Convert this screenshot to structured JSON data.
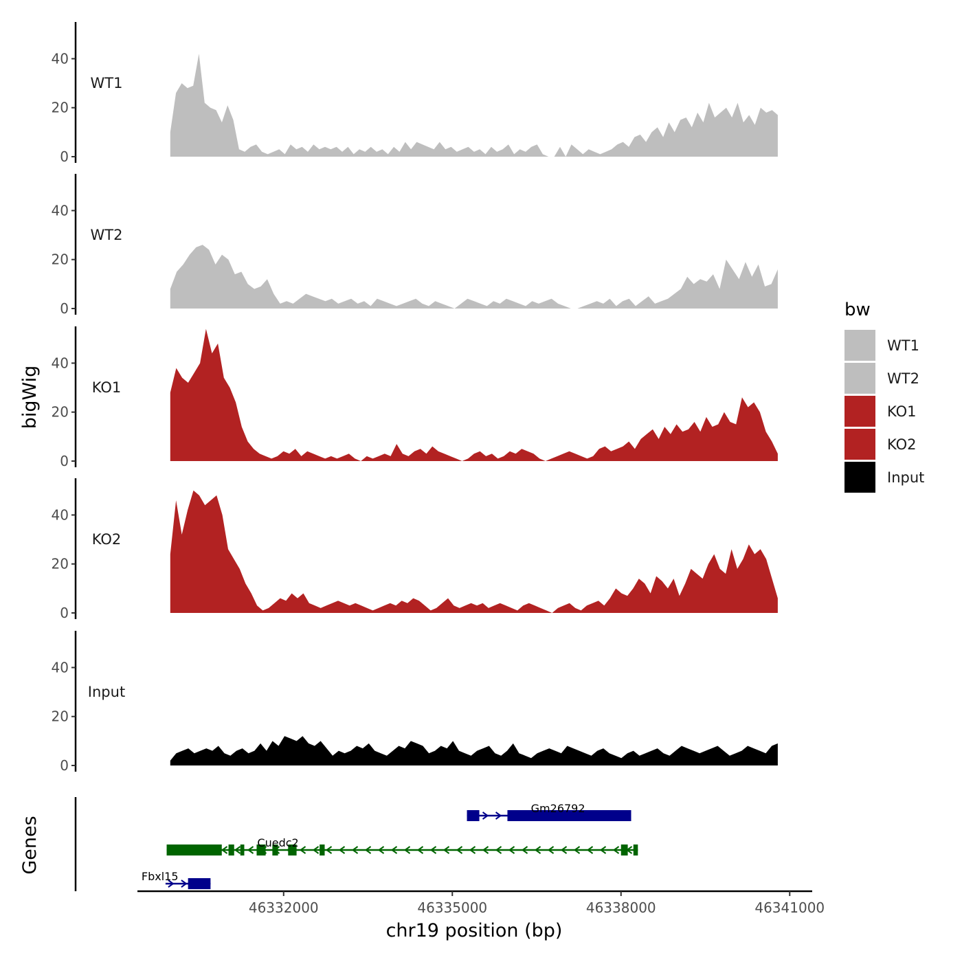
{
  "chart_data": {
    "type": "area",
    "ylabel": "bigWig",
    "xlabel": "chr19 position (bp)",
    "genes_label": "Genes",
    "xlim": [
      46329400,
      46341400
    ],
    "x_ticks": [
      {
        "value": 46332000,
        "label": "46332000"
      },
      {
        "value": 46335000,
        "label": "46335000"
      },
      {
        "value": 46338000,
        "label": "46338000"
      },
      {
        "value": 46341000,
        "label": "46341000"
      }
    ],
    "ylim": [
      0,
      55
    ],
    "y_ticks": [
      {
        "value": 0,
        "label": "0"
      },
      {
        "value": 20,
        "label": "20"
      },
      {
        "value": 40,
        "label": "40"
      }
    ],
    "series_x_range": [
      46329984,
      46340788
    ],
    "tracks": [
      {
        "name": "WT1",
        "label": "WT1",
        "color": "#BEBEBE",
        "values": [
          10,
          26,
          30,
          28,
          29,
          42,
          22,
          20,
          19,
          14,
          21,
          15,
          3,
          2,
          4,
          5,
          2,
          1,
          2,
          3,
          1,
          5,
          3,
          4,
          2,
          5,
          3,
          4,
          3,
          4,
          2,
          4,
          1,
          3,
          2,
          4,
          2,
          3,
          1,
          4,
          2,
          6,
          3,
          6,
          5,
          4,
          3,
          6,
          3,
          4,
          2,
          3,
          4,
          2,
          3,
          1,
          4,
          2,
          3,
          5,
          1,
          3,
          2,
          4,
          5,
          1,
          0,
          0,
          4,
          0,
          5,
          3,
          1,
          3,
          2,
          1,
          2,
          3,
          5,
          6,
          4,
          8,
          9,
          6,
          10,
          12,
          8,
          14,
          10,
          15,
          16,
          12,
          18,
          14,
          22,
          16,
          18,
          20,
          16,
          22,
          14,
          17,
          13,
          20,
          18,
          19,
          17
        ]
      },
      {
        "name": "WT2",
        "label": "WT2",
        "color": "#BEBEBE",
        "values": [
          8,
          15,
          18,
          22,
          25,
          26,
          24,
          18,
          22,
          20,
          14,
          15,
          10,
          8,
          9,
          12,
          6,
          2,
          3,
          2,
          4,
          6,
          5,
          4,
          3,
          4,
          2,
          3,
          4,
          2,
          3,
          1,
          4,
          3,
          2,
          1,
          2,
          3,
          4,
          2,
          1,
          3,
          2,
          1,
          0,
          2,
          4,
          3,
          2,
          1,
          3,
          2,
          4,
          3,
          2,
          1,
          3,
          2,
          3,
          4,
          2,
          1,
          0,
          0,
          1,
          2,
          3,
          2,
          4,
          1,
          3,
          4,
          1,
          3,
          5,
          2,
          3,
          4,
          6,
          8,
          13,
          10,
          12,
          11,
          14,
          8,
          20,
          16,
          12,
          19,
          13,
          18,
          9,
          10,
          16
        ]
      },
      {
        "name": "KO1",
        "label": "KO1",
        "color": "#B22222",
        "values": [
          28,
          38,
          34,
          32,
          36,
          40,
          54,
          44,
          48,
          34,
          30,
          24,
          14,
          8,
          5,
          3,
          2,
          1,
          2,
          4,
          3,
          5,
          2,
          4,
          3,
          2,
          1,
          2,
          1,
          2,
          3,
          1,
          0,
          2,
          1,
          2,
          3,
          2,
          7,
          3,
          2,
          4,
          5,
          3,
          6,
          4,
          3,
          2,
          1,
          0,
          1,
          3,
          4,
          2,
          3,
          1,
          2,
          4,
          3,
          5,
          4,
          3,
          1,
          0,
          1,
          2,
          3,
          4,
          3,
          2,
          1,
          2,
          5,
          6,
          4,
          5,
          6,
          8,
          5,
          9,
          11,
          13,
          9,
          14,
          11,
          15,
          12,
          13,
          16,
          12,
          18,
          14,
          15,
          20,
          16,
          15,
          26,
          22,
          24,
          20,
          12,
          8,
          3
        ]
      },
      {
        "name": "KO2",
        "label": "KO2",
        "color": "#B22222",
        "values": [
          24,
          46,
          32,
          42,
          50,
          48,
          44,
          46,
          48,
          40,
          26,
          22,
          18,
          12,
          8,
          3,
          1,
          2,
          4,
          6,
          5,
          8,
          6,
          8,
          4,
          3,
          2,
          3,
          4,
          5,
          4,
          3,
          4,
          3,
          2,
          1,
          2,
          3,
          4,
          3,
          5,
          4,
          6,
          5,
          3,
          1,
          2,
          4,
          6,
          3,
          2,
          3,
          4,
          3,
          4,
          2,
          3,
          4,
          3,
          2,
          1,
          3,
          4,
          3,
          2,
          1,
          0,
          2,
          3,
          4,
          2,
          1,
          3,
          4,
          5,
          3,
          6,
          10,
          8,
          7,
          10,
          14,
          12,
          8,
          15,
          13,
          10,
          14,
          7,
          12,
          18,
          16,
          14,
          20,
          24,
          18,
          16,
          26,
          18,
          22,
          28,
          24,
          26,
          22,
          14,
          6
        ]
      },
      {
        "name": "Input",
        "label": "Input",
        "color": "#000000",
        "values": [
          2,
          5,
          6,
          7,
          5,
          6,
          7,
          6,
          8,
          5,
          4,
          6,
          7,
          5,
          6,
          9,
          6,
          10,
          8,
          12,
          11,
          10,
          12,
          9,
          8,
          10,
          7,
          4,
          6,
          5,
          6,
          8,
          7,
          9,
          6,
          5,
          4,
          6,
          8,
          7,
          10,
          9,
          8,
          5,
          6,
          8,
          7,
          10,
          6,
          5,
          4,
          6,
          7,
          8,
          5,
          4,
          6,
          9,
          5,
          4,
          3,
          5,
          6,
          7,
          6,
          5,
          8,
          7,
          6,
          5,
          4,
          6,
          7,
          5,
          4,
          3,
          5,
          6,
          4,
          5,
          6,
          7,
          5,
          4,
          6,
          8,
          7,
          6,
          5,
          6,
          7,
          8,
          6,
          4,
          5,
          6,
          8,
          7,
          6,
          5,
          8,
          9
        ]
      }
    ],
    "genes": [
      {
        "name": "Gm26792",
        "color": "#00008B",
        "strand": "+",
        "start": 46335260,
        "end": 46338180,
        "exons": [
          [
            46335260,
            46335480
          ],
          [
            46335980,
            46338180
          ]
        ],
        "label_pos": 46336880
      },
      {
        "name": "Cuedc2",
        "color": "#006400",
        "strand": "-",
        "start": 46329920,
        "end": 46338300,
        "exons": [
          [
            46329920,
            46330900
          ],
          [
            46331020,
            46331120
          ],
          [
            46331230,
            46331300
          ],
          [
            46331520,
            46331680
          ],
          [
            46331800,
            46331900
          ],
          [
            46332080,
            46332230
          ],
          [
            46332640,
            46332730
          ],
          [
            46338000,
            46338120
          ],
          [
            46338220,
            46338300
          ]
        ],
        "label_pos": 46331900
      },
      {
        "name": "Fbxl15",
        "color": "#00008B",
        "strand": "+",
        "start": 46329900,
        "end": 46330700,
        "exons": [
          [
            46330300,
            46330700
          ]
        ],
        "label_pos": 46329800
      }
    ],
    "legend": {
      "title": "bw",
      "entries": [
        {
          "label": "WT1",
          "color": "#BEBEBE"
        },
        {
          "label": "WT2",
          "color": "#BEBEBE"
        },
        {
          "label": "KO1",
          "color": "#B22222"
        },
        {
          "label": "KO2",
          "color": "#B22222"
        },
        {
          "label": "Input",
          "color": "#000000"
        }
      ]
    }
  }
}
